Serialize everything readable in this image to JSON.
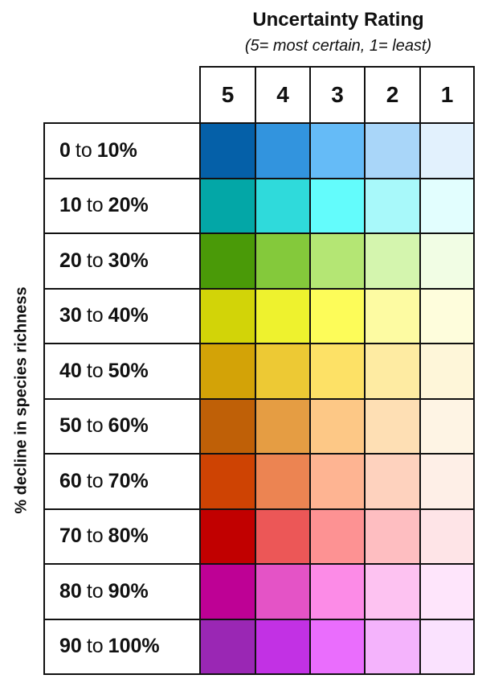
{
  "header": {
    "title": "Uncertainty Rating",
    "subtitle": "(5= most certain, 1= least)"
  },
  "y_axis_label": "% decline in species richness",
  "columns": [
    "5",
    "4",
    "3",
    "2",
    "1"
  ],
  "rows": [
    {
      "from": "0",
      "to_word": "to",
      "to": "10%",
      "colors": [
        "#0560A8",
        "#3294DE",
        "#65BBF7",
        "#A9D6F9",
        "#E2F1FD"
      ]
    },
    {
      "from": "10",
      "to_word": "to",
      "to": "20%",
      "colors": [
        "#03A7A7",
        "#2FDADB",
        "#63FCFC",
        "#A8F9FA",
        "#E2FEFE"
      ]
    },
    {
      "from": "20",
      "to_word": "to",
      "to": "30%",
      "colors": [
        "#4A9A08",
        "#84C93B",
        "#B4E674",
        "#D4F5AE",
        "#F1FDE4"
      ]
    },
    {
      "from": "30",
      "to_word": "to",
      "to": "40%",
      "colors": [
        "#D2D408",
        "#EEF22E",
        "#FDFC59",
        "#FDFBA2",
        "#FEFDDC"
      ]
    },
    {
      "from": "40",
      "to_word": "to",
      "to": "50%",
      "colors": [
        "#D3A307",
        "#EDC934",
        "#FDE166",
        "#FEEBA2",
        "#FEF6D9"
      ]
    },
    {
      "from": "50",
      "to_word": "to",
      "to": "60%",
      "colors": [
        "#BF6007",
        "#E59D43",
        "#FDC886",
        "#FEDFB4",
        "#FEF4E4"
      ]
    },
    {
      "from": "60",
      "to_word": "to",
      "to": "70%",
      "colors": [
        "#CE4303",
        "#EC8452",
        "#FEB492",
        "#FED2BE",
        "#FEEFE7"
      ]
    },
    {
      "from": "70",
      "to_word": "to",
      "to": "80%",
      "colors": [
        "#C10000",
        "#EC5757",
        "#FD9293",
        "#FEBEC1",
        "#FEE4E7"
      ]
    },
    {
      "from": "80",
      "to_word": "to",
      "to": "90%",
      "colors": [
        "#BE0195",
        "#E453C6",
        "#FC8BE7",
        "#FDC2F1",
        "#FEE5FB"
      ]
    },
    {
      "from": "90",
      "to_word": "to",
      "to": "100%",
      "colors": [
        "#9A27B4",
        "#C231E4",
        "#EA6DFD",
        "#F4B3FC",
        "#FAE2FE"
      ]
    }
  ]
}
